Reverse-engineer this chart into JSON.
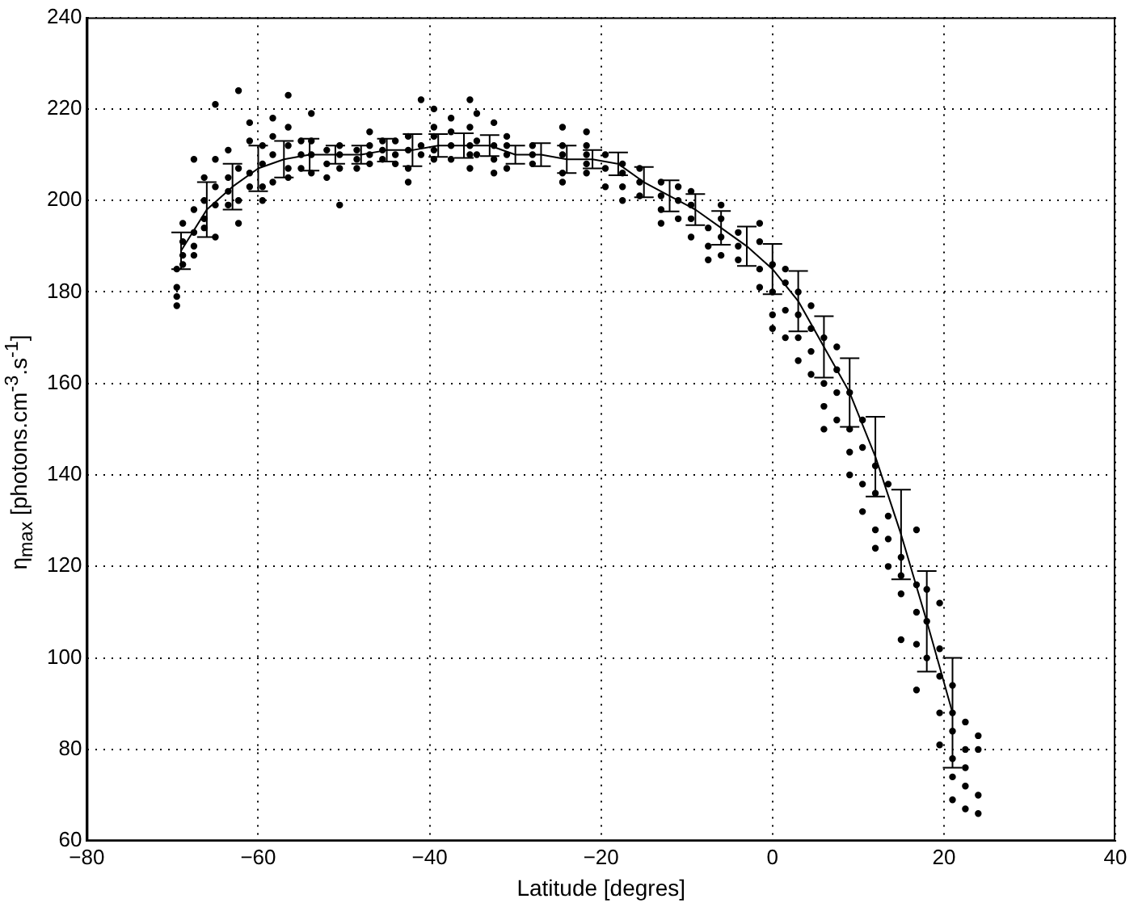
{
  "chart_data": {
    "type": "scatter",
    "xlabel": "Latitude [degres]",
    "ylabel": "η$_{max}$ [photons.cm$^{-3}$.s$^{-1}$]",
    "xlim": [
      -80,
      40
    ],
    "xticks": [
      -80,
      -60,
      -40,
      -20,
      0,
      20,
      40
    ],
    "ylim": [
      60,
      240
    ],
    "yticks": [
      60,
      80,
      100,
      120,
      140,
      160,
      180,
      200,
      220,
      240
    ],
    "grid": true,
    "legend": false,
    "series": [
      {
        "type": "scatter",
        "marker": "circle",
        "color": "#000000",
        "x": [
          -69.5,
          -69.5,
          -69.5,
          -69.5,
          -68.8,
          -68.8,
          -68.8,
          -68.8,
          -67.5,
          -67.5,
          -67.5,
          -67.5,
          -67.5,
          -66.3,
          -66.3,
          -66.3,
          -66.3,
          -65,
          -65,
          -65,
          -65,
          -65,
          -63.5,
          -63.5,
          -63.5,
          -63.5,
          -62.3,
          -62.3,
          -62.3,
          -62.3,
          -61,
          -61,
          -61,
          -61,
          -59.5,
          -59.5,
          -59.5,
          -59.5,
          -58.3,
          -58.3,
          -58.3,
          -58.3,
          -56.5,
          -56.5,
          -56.5,
          -56.5,
          -56.5,
          -55,
          -55,
          -55,
          -53.8,
          -53.8,
          -53.8,
          -53.8,
          -52,
          -52,
          -52,
          -50.5,
          -50.5,
          -50.5,
          -50.5,
          -48.5,
          -48.5,
          -48.5,
          -47,
          -47,
          -47,
          -47,
          -45.5,
          -45.5,
          -45.5,
          -44,
          -44,
          -44,
          -42.5,
          -42.5,
          -42.5,
          -42.5,
          -41,
          -41,
          -41,
          -39.5,
          -39.5,
          -39.5,
          -39.5,
          -39.5,
          -37.5,
          -37.5,
          -37.5,
          -37.5,
          -35.3,
          -35.3,
          -35.3,
          -35.3,
          -35.3,
          -34.5,
          -34.5,
          -34.5,
          -32.5,
          -32.5,
          -32.5,
          -32.5,
          -31,
          -31,
          -31,
          -31,
          -28,
          -28,
          -28,
          -24.5,
          -24.5,
          -24.5,
          -24.5,
          -24.5,
          -21.7,
          -21.7,
          -21.7,
          -21.7,
          -21.7,
          -19.5,
          -19.5,
          -19.5,
          -17.5,
          -17.5,
          -17.5,
          -17.5,
          -15.5,
          -15.5,
          -15.5,
          -13,
          -13,
          -13,
          -13,
          -11,
          -11,
          -11,
          -9.5,
          -9.5,
          -9.5,
          -9.5,
          -7.5,
          -7.5,
          -7.5,
          -6,
          -6,
          -6,
          -6,
          -4,
          -4,
          -4,
          -1.5,
          -1.5,
          -1.5,
          -1.5,
          0,
          0,
          0,
          0,
          1.5,
          1.5,
          1.5,
          1.5,
          3,
          3,
          3,
          3,
          4.5,
          4.5,
          4.5,
          4.5,
          6,
          6,
          6,
          6,
          7.5,
          7.5,
          7.5,
          7.5,
          9,
          9,
          9,
          9,
          10.5,
          10.5,
          10.5,
          10.5,
          12,
          12,
          12,
          12,
          13.5,
          13.5,
          13.5,
          13.5,
          15,
          15,
          15,
          15,
          16.8,
          16.8,
          16.8,
          16.8,
          16.8,
          18,
          18,
          18,
          19.5,
          19.5,
          19.5,
          19.5,
          19.5,
          21,
          21,
          21,
          21,
          21,
          21,
          22.5,
          22.5,
          22.5,
          22.5,
          22.5,
          24,
          24,
          24,
          24
        ],
        "values": [
          177,
          179,
          181,
          185,
          186,
          188,
          191,
          195,
          188,
          190,
          193,
          198,
          209,
          194,
          196,
          200,
          205,
          192,
          199,
          203,
          209,
          221,
          199,
          202,
          205,
          211,
          195,
          200,
          207,
          224,
          203,
          206,
          213,
          217,
          200,
          203,
          208,
          212,
          204,
          210,
          214,
          218,
          205,
          207,
          212,
          216,
          223,
          207,
          210,
          213,
          206,
          210,
          213,
          219,
          205,
          208,
          211,
          199,
          207,
          210,
          212,
          207,
          209,
          211,
          208,
          210,
          212,
          215,
          209,
          211,
          213,
          208,
          210,
          213,
          204,
          207,
          211,
          214,
          210,
          212,
          222,
          209,
          211,
          214,
          216,
          220,
          209,
          212,
          215,
          218,
          207,
          210,
          212,
          216,
          222,
          210,
          213,
          219,
          206,
          209,
          212,
          217,
          207,
          210,
          212,
          214,
          208,
          210,
          212,
          204,
          206,
          210,
          212,
          216,
          206,
          208,
          210,
          212,
          215,
          203,
          207,
          210,
          200,
          203,
          206,
          208,
          201,
          204,
          207,
          195,
          198,
          201,
          204,
          196,
          200,
          203,
          192,
          196,
          199,
          202,
          187,
          190,
          194,
          188,
          192,
          196,
          199,
          187,
          190,
          193,
          181,
          185,
          191,
          195,
          172,
          175,
          180,
          186,
          170,
          176,
          182,
          185,
          165,
          170,
          175,
          180,
          162,
          167,
          172,
          177,
          150,
          155,
          160,
          170,
          152,
          158,
          163,
          168,
          140,
          145,
          150,
          158,
          132,
          138,
          146,
          152,
          124,
          128,
          136,
          142,
          120,
          126,
          131,
          138,
          104,
          114,
          118,
          122,
          93,
          103,
          110,
          116,
          128,
          100,
          108,
          115,
          81,
          88,
          96,
          102,
          112,
          69,
          74,
          78,
          84,
          88,
          94,
          67,
          72,
          76,
          80,
          86,
          66,
          70,
          80,
          83
        ]
      },
      {
        "type": "line",
        "line_style": "solid",
        "color": "#000000",
        "x": [
          -69,
          -66,
          -63,
          -60,
          -57,
          -54,
          -51,
          -48,
          -45,
          -42,
          -39,
          -36,
          -33,
          -30,
          -27,
          -24,
          -21,
          -18,
          -15,
          -12,
          -9,
          -6,
          -3,
          0,
          3,
          6,
          9,
          12,
          15,
          18,
          21
        ],
        "values": [
          189,
          198,
          203,
          207,
          209,
          210,
          210,
          210,
          211,
          211,
          212,
          212,
          212,
          210,
          210,
          209,
          209,
          208,
          204,
          201,
          198,
          194,
          190,
          185,
          178,
          168,
          158,
          144,
          127,
          108,
          88
        ],
        "errors": [
          4,
          6,
          5,
          5,
          4,
          3.5,
          2,
          2,
          2.5,
          3.5,
          2.5,
          2.7,
          2.3,
          2,
          2.5,
          3,
          2,
          2.5,
          3.3,
          3.4,
          3.4,
          3.7,
          4.3,
          5.5,
          6.6,
          6.7,
          7.5,
          8.7,
          9.8,
          11,
          12
        ]
      }
    ]
  }
}
